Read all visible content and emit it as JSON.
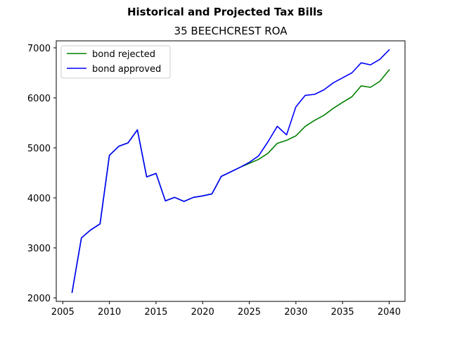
{
  "chart_data": {
    "type": "line",
    "suptitle": "Historical and Projected Tax Bills",
    "title": "35 BEECHCREST ROA",
    "xlabel": "",
    "ylabel": "",
    "xlim": [
      2004.3,
      2041.7
    ],
    "ylim": [
      1930,
      7140
    ],
    "xticks": [
      2005,
      2010,
      2015,
      2020,
      2025,
      2030,
      2035,
      2040
    ],
    "yticks": [
      2000,
      3000,
      4000,
      5000,
      6000,
      7000
    ],
    "grid": false,
    "legend_position": "upper left",
    "x": [
      2006,
      2007,
      2008,
      2009,
      2010,
      2011,
      2012,
      2013,
      2014,
      2015,
      2016,
      2017,
      2018,
      2019,
      2020,
      2021,
      2022,
      2023,
      2024,
      2025,
      2026,
      2027,
      2028,
      2029,
      2030,
      2031,
      2032,
      2033,
      2034,
      2035,
      2036,
      2037,
      2038,
      2039,
      2040
    ],
    "series": [
      {
        "name": "bond rejected",
        "color": "#008000",
        "values": [
          2110,
          3200,
          3360,
          3480,
          4850,
          5030,
          5100,
          5360,
          4420,
          4490,
          3940,
          4010,
          3930,
          4010,
          4040,
          4080,
          4430,
          4520,
          4610,
          4690,
          4770,
          4890,
          5090,
          5150,
          5240,
          5430,
          5550,
          5650,
          5790,
          5910,
          6020,
          6240,
          6210,
          6330,
          6560
        ]
      },
      {
        "name": "bond approved",
        "color": "#0000ff",
        "values": [
          2110,
          3200,
          3360,
          3480,
          4850,
          5030,
          5100,
          5360,
          4420,
          4490,
          3940,
          4010,
          3930,
          4010,
          4040,
          4080,
          4430,
          4520,
          4610,
          4710,
          4840,
          5120,
          5430,
          5260,
          5820,
          6050,
          6070,
          6160,
          6300,
          6400,
          6500,
          6700,
          6660,
          6770,
          6960
        ]
      }
    ]
  }
}
